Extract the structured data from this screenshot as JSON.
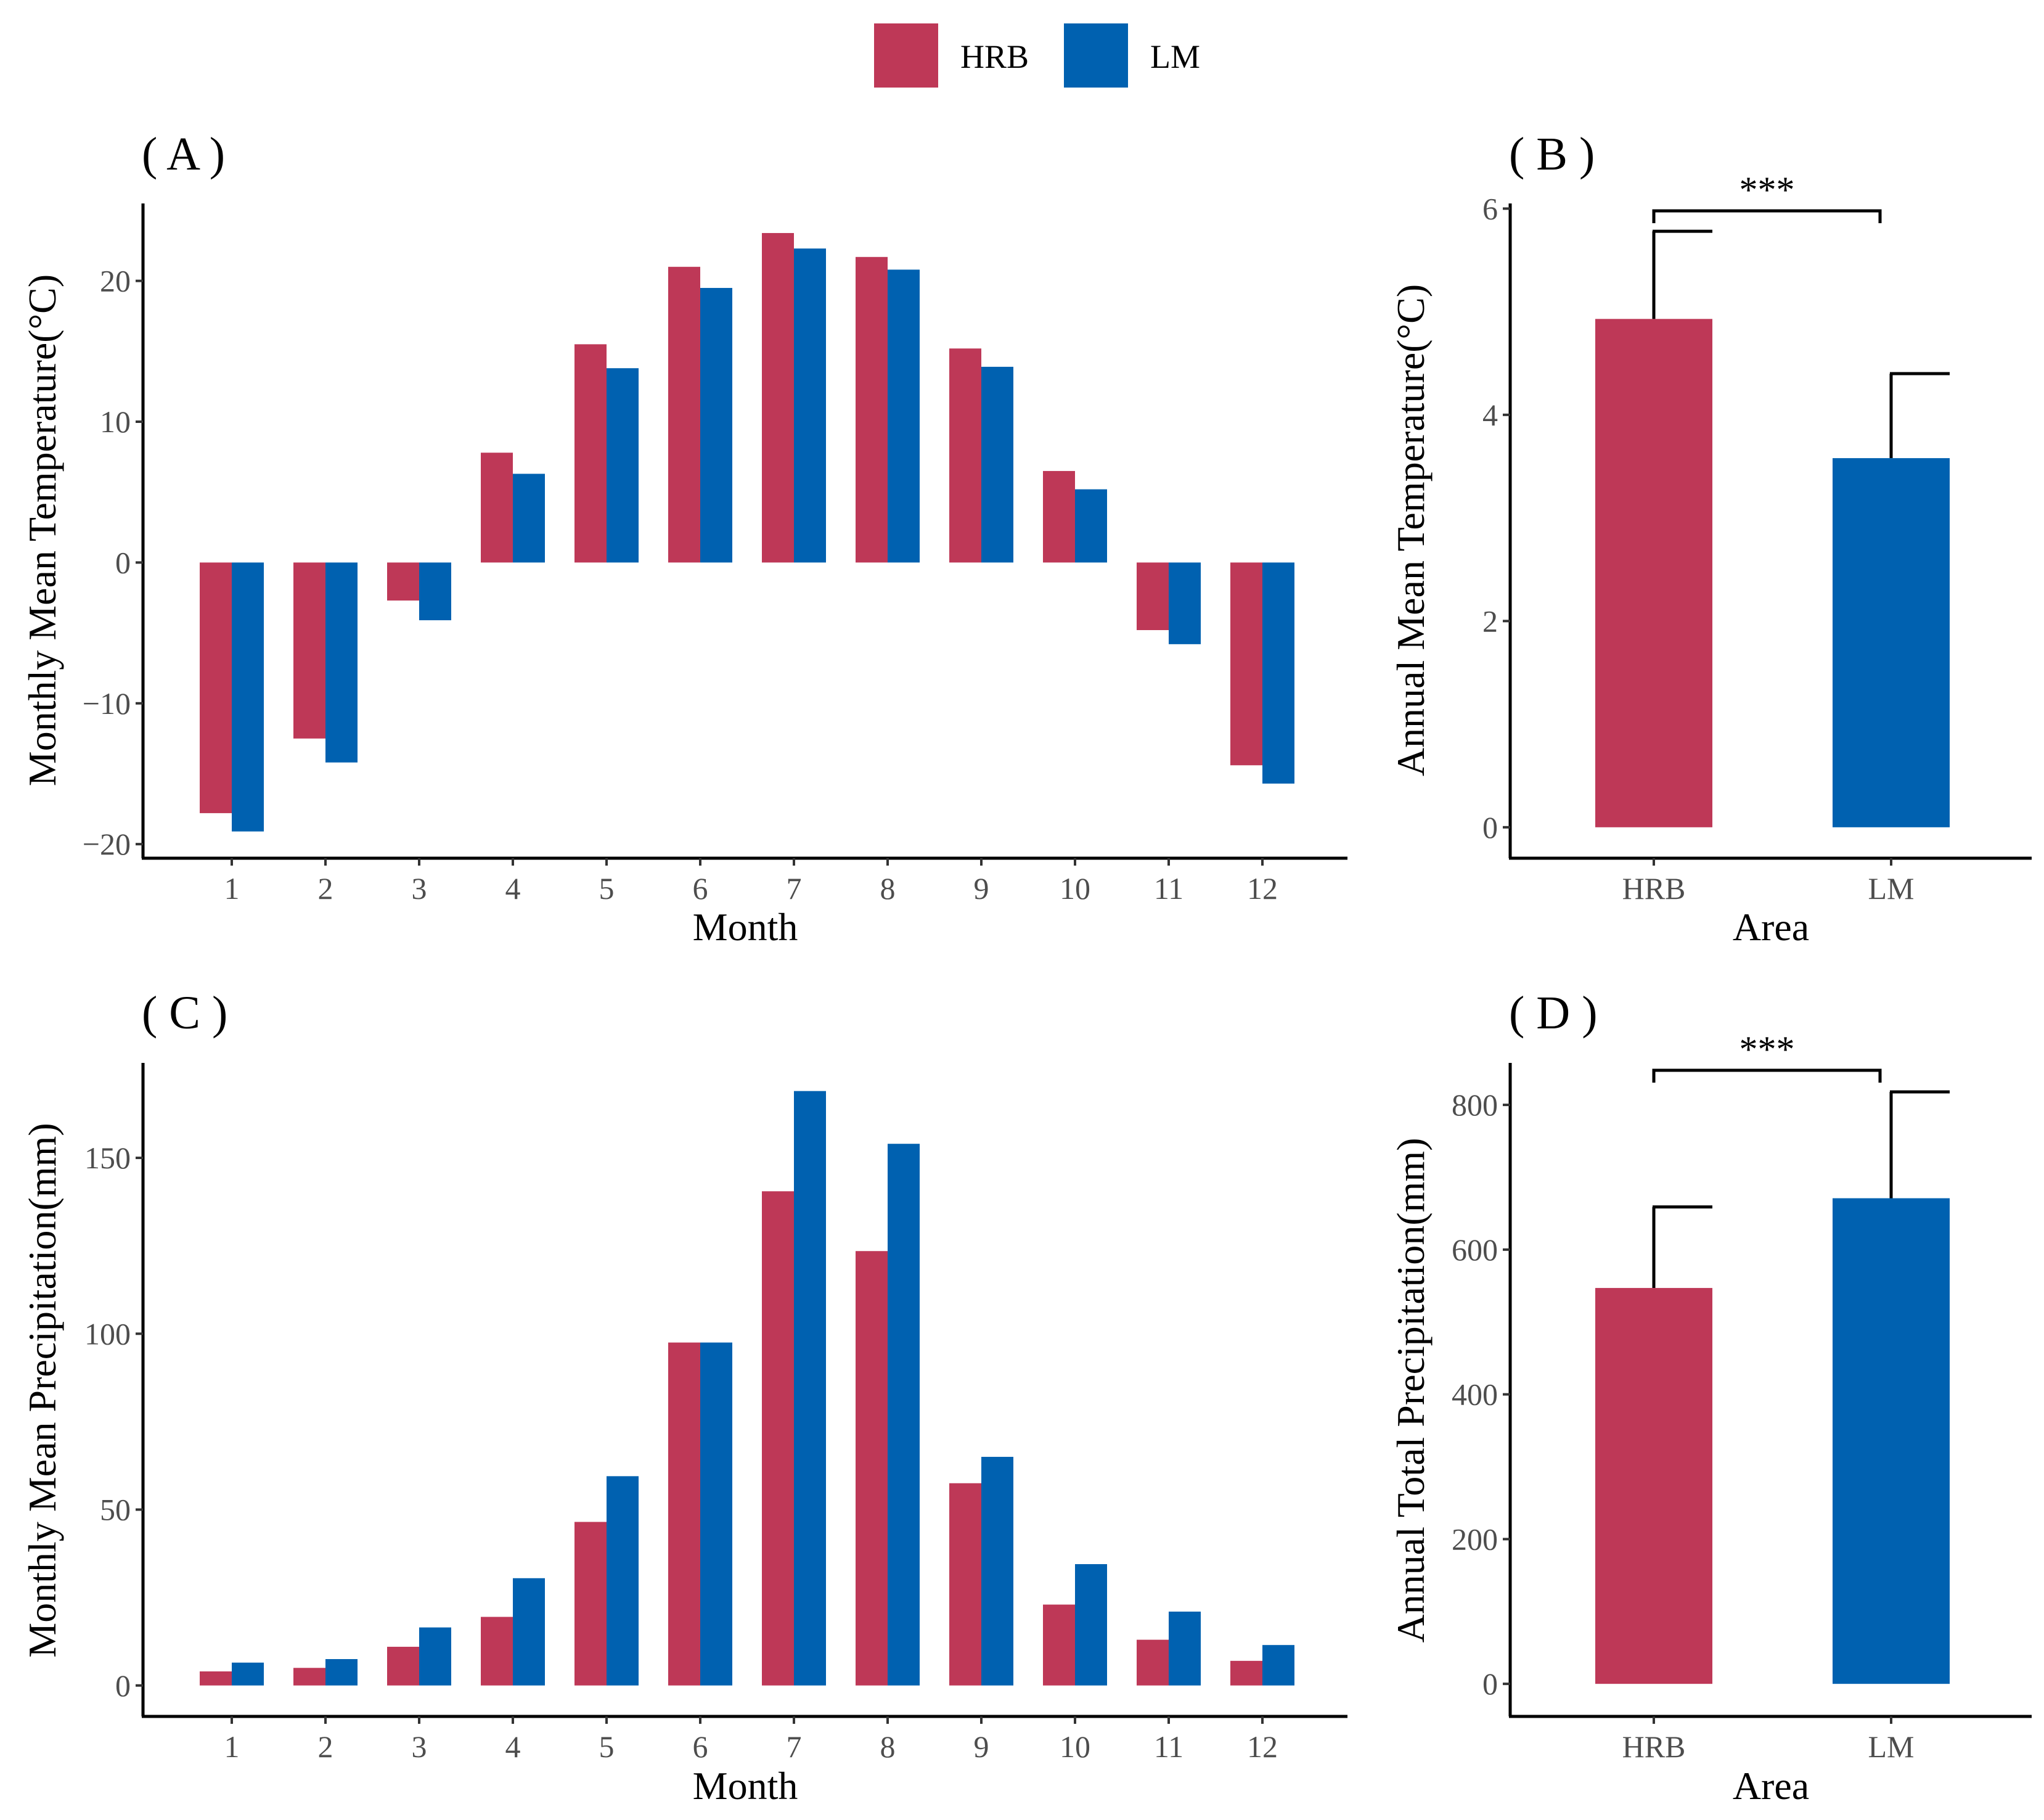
{
  "colors": {
    "HRB": "#be3857",
    "LM": "#0061b0"
  },
  "legend": {
    "items": [
      {
        "key": "HRB",
        "label": "HRB"
      },
      {
        "key": "LM",
        "label": "LM"
      }
    ]
  },
  "chart_data": [
    {
      "id": "A",
      "panel_label": "( A )",
      "type": "bar",
      "categories": [
        "1",
        "2",
        "3",
        "4",
        "5",
        "6",
        "7",
        "8",
        "9",
        "10",
        "11",
        "12"
      ],
      "series": [
        {
          "name": "HRB",
          "values": [
            -17.8,
            -12.5,
            -2.7,
            7.8,
            15.5,
            21.0,
            23.4,
            21.7,
            15.2,
            6.5,
            -4.8,
            -14.4
          ]
        },
        {
          "name": "LM",
          "values": [
            -19.1,
            -14.2,
            -4.1,
            6.3,
            13.8,
            19.5,
            22.3,
            20.8,
            13.9,
            5.2,
            -5.8,
            -15.7
          ]
        }
      ],
      "xlabel": "Month",
      "ylabel": "Monthly Mean Temperature(°C)",
      "ylim": [
        -21,
        25.5
      ],
      "yticks": [
        -20,
        -10,
        0,
        10,
        20
      ],
      "ytick_labels": [
        "−20",
        "−10",
        "0",
        "10",
        "20"
      ]
    },
    {
      "id": "B",
      "panel_label": "( B )",
      "type": "bar",
      "categories": [
        "HRB",
        "LM"
      ],
      "values": [
        4.93,
        3.58
      ],
      "errors": [
        0.85,
        0.82
      ],
      "xlabel": "Area",
      "ylabel": "Annual Mean Temperature(°C)",
      "ylim": [
        -0.3,
        6.05
      ],
      "yticks": [
        0,
        2,
        4,
        6
      ],
      "ytick_labels": [
        "0",
        "2",
        "4",
        "6"
      ],
      "significance": "***"
    },
    {
      "id": "C",
      "panel_label": "( C )",
      "type": "bar",
      "categories": [
        "1",
        "2",
        "3",
        "4",
        "5",
        "6",
        "7",
        "8",
        "9",
        "10",
        "11",
        "12"
      ],
      "series": [
        {
          "name": "HRB",
          "values": [
            4,
            5,
            11,
            19.5,
            46.5,
            97.5,
            140.5,
            123.5,
            57.5,
            23,
            13,
            7
          ]
        },
        {
          "name": "LM",
          "values": [
            6.5,
            7.5,
            16.5,
            30.5,
            59.5,
            97.5,
            169,
            154,
            65,
            34.5,
            21,
            11.5
          ]
        }
      ],
      "xlabel": "Month",
      "ylabel": "Monthly Mean Precipitation(mm)",
      "ylim": [
        -8.8,
        177
      ],
      "yticks": [
        0,
        50,
        100,
        150
      ],
      "ytick_labels": [
        "0",
        "50",
        "100",
        "150"
      ]
    },
    {
      "id": "D",
      "panel_label": "( D )",
      "type": "bar",
      "categories": [
        "HRB",
        "LM"
      ],
      "values": [
        547,
        671
      ],
      "errors": [
        112,
        147
      ],
      "xlabel": "Area",
      "ylabel": "Annual Total Precipitation(mm)",
      "ylim": [
        -45,
        858
      ],
      "yticks": [
        0,
        200,
        400,
        600,
        800
      ],
      "ytick_labels": [
        "0",
        "200",
        "400",
        "600",
        "800"
      ],
      "significance": "***"
    }
  ]
}
